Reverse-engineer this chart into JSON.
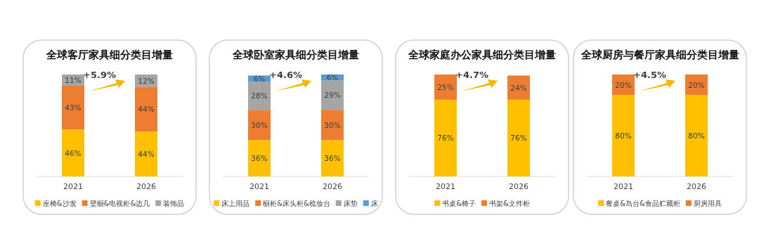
{
  "chart_data": [
    {
      "type": "bar",
      "title": "全球客厅家具细分类目增量",
      "categories": [
        "2021",
        "2026"
      ],
      "stacked": true,
      "legend": "bottom",
      "annotations": [
        "+5.9%"
      ],
      "series": [
        {
          "name": "座椅&沙发",
          "color": "#ffc000",
          "values": [
            46,
            44
          ],
          "value_labels": [
            "46%",
            "44%"
          ]
        },
        {
          "name": "壁橱&电视柜&边几",
          "color": "#ed7d31",
          "values": [
            43,
            44
          ],
          "value_labels": [
            "43%",
            "44%"
          ]
        },
        {
          "name": "装饰品",
          "color": "#a5a5a5",
          "values": [
            11,
            12
          ],
          "value_labels": [
            "11%",
            "12%"
          ]
        }
      ]
    },
    {
      "type": "bar",
      "title": "全球卧室家具细分类目增量",
      "categories": [
        "2021",
        "2026"
      ],
      "stacked": true,
      "legend": "bottom",
      "annotations": [
        "+4.6%"
      ],
      "series": [
        {
          "name": "床上用品",
          "color": "#ffc000",
          "values": [
            36,
            36
          ],
          "value_labels": [
            "36%",
            "36%"
          ]
        },
        {
          "name": "橱柜&床头柜&梳妆台",
          "color": "#ed7d31",
          "values": [
            30,
            30
          ],
          "value_labels": [
            "30%",
            "30%"
          ]
        },
        {
          "name": "床垫",
          "color": "#a5a5a5",
          "values": [
            28,
            29
          ],
          "value_labels": [
            "28%",
            "29%"
          ]
        },
        {
          "name": "床",
          "color": "#5b9bd5",
          "values": [
            6,
            6
          ],
          "value_labels": [
            "6%",
            "6%"
          ]
        }
      ]
    },
    {
      "type": "bar",
      "title": "全球家庭办公家具细分类目增量",
      "categories": [
        "2021",
        "2026"
      ],
      "stacked": true,
      "legend": "bottom",
      "annotations": [
        "+4.7%"
      ],
      "series": [
        {
          "name": "书桌&椅子",
          "color": "#ffc000",
          "values": [
            76,
            76
          ],
          "value_labels": [
            "76%",
            "76%"
          ]
        },
        {
          "name": "书架&文件柜",
          "color": "#ed7d31",
          "values": [
            25,
            24
          ],
          "value_labels": [
            "25%",
            "24%"
          ]
        }
      ]
    },
    {
      "type": "bar",
      "title": "全球厨房与餐厅家具细分类目增量",
      "categories": [
        "2021",
        "2026"
      ],
      "stacked": true,
      "legend": "bottom",
      "annotations": [
        "+4.5%"
      ],
      "series": [
        {
          "name": "餐桌&岛台&食品贮藏柜",
          "color": "#ffc000",
          "values": [
            80,
            80
          ],
          "value_labels": [
            "80%",
            "80%"
          ]
        },
        {
          "name": "厨房用具",
          "color": "#ed7d31",
          "values": [
            20,
            20
          ],
          "value_labels": [
            "20%",
            "20%"
          ]
        }
      ]
    }
  ]
}
